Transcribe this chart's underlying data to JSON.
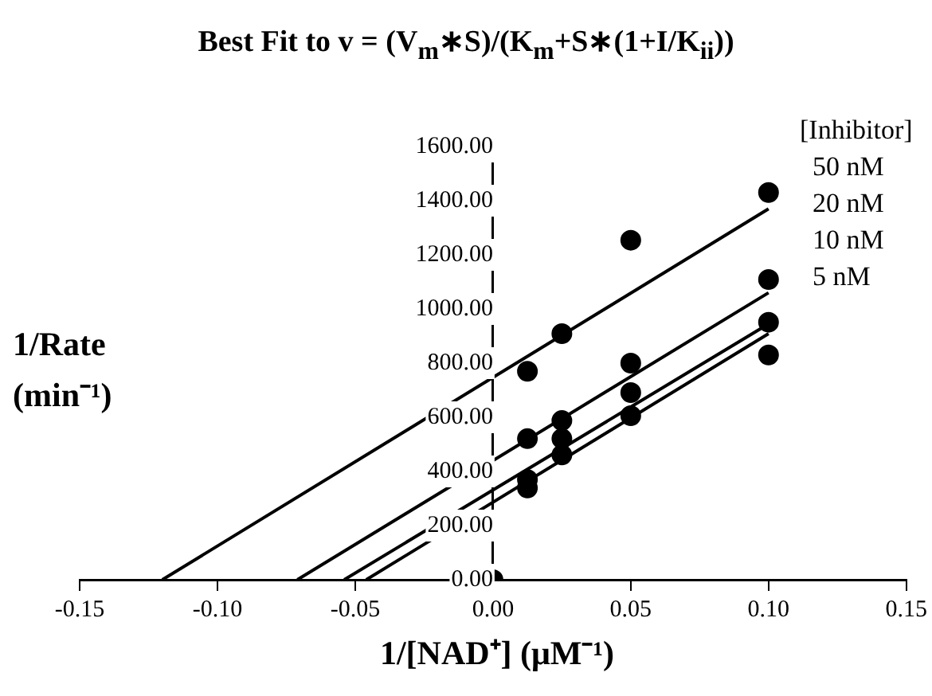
{
  "chart_data": {
    "type": "scatter",
    "title": "Best Fit to v = (V$_{m}$∗S)/(K$_{m}$+S∗(1+I/K$_{ii}$))",
    "xlabel": "1/[NAD⁺] (μM⁻¹)",
    "ylabel": "1/Rate (min⁻¹)",
    "legend_title": "[Inhibitor]",
    "legend": "top right",
    "grid": false,
    "marker": "circle",
    "xlim": [
      -0.15,
      0.15
    ],
    "ylim": [
      0,
      1600
    ],
    "xticks": [
      {
        "value": -0.15,
        "label": "-0.15"
      },
      {
        "value": -0.1,
        "label": "-0.10"
      },
      {
        "value": -0.05,
        "label": "-0.05"
      },
      {
        "value": 0,
        "label": "0.00"
      },
      {
        "value": 0.05,
        "label": "0.05"
      },
      {
        "value": 0.1,
        "label": "0.10"
      },
      {
        "value": 0.15,
        "label": "0.15"
      }
    ],
    "yticks": [
      {
        "value": 0,
        "label": "0.00"
      },
      {
        "value": 200,
        "label": "200.00"
      },
      {
        "value": 400,
        "label": "400.00"
      },
      {
        "value": 600,
        "label": "600.00"
      },
      {
        "value": 800,
        "label": "800.00"
      },
      {
        "value": 1000,
        "label": "1000.00"
      },
      {
        "value": 1200,
        "label": "1200.00"
      },
      {
        "value": 1400,
        "label": "1400.00"
      },
      {
        "value": 1600,
        "label": "1600.00"
      }
    ],
    "series": [
      {
        "name": "50 nM",
        "color": "#000000",
        "x": [
          0.0125,
          0.025,
          0.05,
          0.1
        ],
        "values": [
          770,
          909,
          1254,
          1430
        ]
      },
      {
        "name": "20 nM",
        "color": "#000000",
        "x": [
          0.0125,
          0.025,
          0.05,
          0.1
        ],
        "values": [
          521,
          588,
          800,
          1109
        ]
      },
      {
        "name": "10 nM",
        "color": "#000000",
        "x": [
          0.0125,
          0.025,
          0.05,
          0.1
        ],
        "values": [
          370,
          521,
          691,
          951
        ]
      },
      {
        "name": "5 nM",
        "color": "#000000",
        "x": [
          0.0125,
          0.025,
          0.05,
          0.1
        ],
        "values": [
          339,
          461,
          606,
          830
        ]
      },
      {
        "color": "#000000",
        "x": [
          0
        ],
        "values": [
          0
        ]
      },
      {
        "type": "line",
        "marker": "none",
        "color": "#000000",
        "x": [
          -0.12,
          0.1
        ],
        "values": [
          0,
          1370
        ]
      },
      {
        "type": "line",
        "marker": "none",
        "color": "#000000",
        "x": [
          -0.071,
          0.1
        ],
        "values": [
          0,
          1060
        ]
      },
      {
        "type": "line",
        "marker": "none",
        "color": "#000000",
        "x": [
          -0.054,
          0.1
        ],
        "values": [
          0,
          945
        ]
      },
      {
        "type": "line",
        "marker": "none",
        "color": "#000000",
        "x": [
          -0.046,
          0.1
        ],
        "values": [
          0,
          909
        ]
      }
    ]
  }
}
